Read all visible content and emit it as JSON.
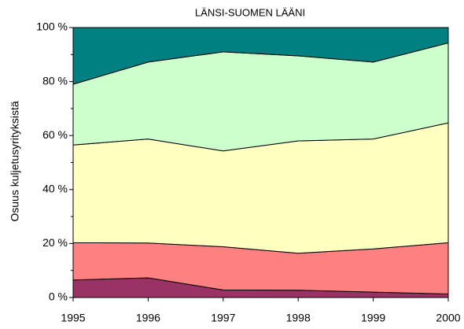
{
  "chart_data": {
    "type": "stacked_area",
    "title": "LÄNSI-SUOMEN LÄÄNI",
    "y_label": "Osuus kuljetusyrityksistä",
    "x": [
      1995,
      1996,
      1997,
      1998,
      1999,
      2000
    ],
    "xlim": [
      1995,
      2000
    ],
    "xticks": [
      1995,
      1996,
      1997,
      1998,
      1999,
      2000
    ],
    "ylim": [
      0,
      100
    ],
    "yticks": [
      {
        "value": 0,
        "label": "0 %"
      },
      {
        "value": 20,
        "label": "20 %"
      },
      {
        "value": 40,
        "label": "40 %"
      },
      {
        "value": 60,
        "label": "60 %"
      },
      {
        "value": 80,
        "label": "80 %"
      },
      {
        "value": 100,
        "label": "100 %"
      }
    ],
    "yminorticks": [
      10,
      30,
      50,
      70,
      90
    ],
    "series": [
      {
        "color": "#993366",
        "values": [
          6.5,
          7.3,
          2.8,
          2.7,
          2.0,
          1.3
        ]
      },
      {
        "color": "#ff8080",
        "values": [
          13.8,
          12.9,
          16.0,
          13.7,
          16.0,
          19.0
        ]
      },
      {
        "color": "#ffffc0",
        "values": [
          36.2,
          38.5,
          35.5,
          41.6,
          40.7,
          44.4
        ]
      },
      {
        "color": "#ccffcc",
        "values": [
          22.5,
          28.5,
          36.7,
          31.5,
          28.5,
          29.6
        ]
      },
      {
        "color": "#008080",
        "values": [
          21.0,
          12.8,
          9.0,
          10.5,
          12.8,
          5.7
        ]
      }
    ]
  }
}
